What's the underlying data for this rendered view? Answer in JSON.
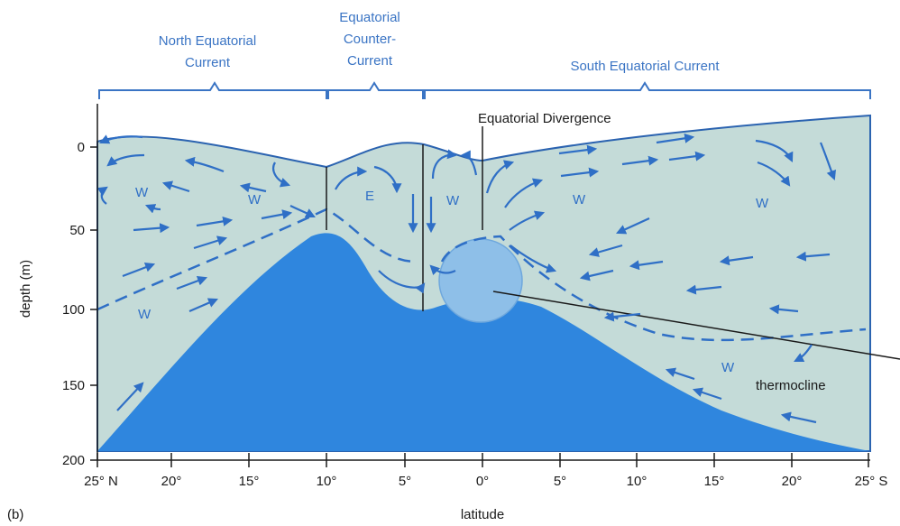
{
  "figure_label": "(b)",
  "currents": {
    "north": [
      "North Equatorial",
      "Current"
    ],
    "counter": [
      "Equatorial",
      "Counter-",
      "Current"
    ],
    "south": [
      "South Equatorial Current"
    ]
  },
  "divergence_label": "Equatorial Divergence",
  "thermocline_label": "thermocline",
  "y_axis": {
    "label": "depth (m)",
    "ticks": [
      "0",
      "50",
      "100",
      "150",
      "200"
    ]
  },
  "x_axis": {
    "label": "latitude",
    "ticks": [
      "25° N",
      "20°",
      "15°",
      "10°",
      "5°",
      "0°",
      "5°",
      "10°",
      "15°",
      "20°",
      "25° S"
    ]
  },
  "water_labels": [
    "W",
    "W",
    "E",
    "W",
    "W",
    "W",
    "W",
    "W"
  ],
  "colors": {
    "upper_water": "#c4dbd8",
    "lower_water": "#2f86de",
    "bubble": "#8ebfe8",
    "label_blue": "#3a74c4",
    "arrow_blue": "#2f6fc6"
  }
}
